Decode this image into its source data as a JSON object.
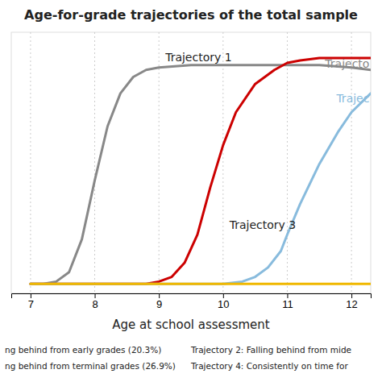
{
  "chart_data": {
    "type": "line",
    "title": "Age-for-grade trajectories of the total sample",
    "x_label": "Age at school assessment",
    "xlim": [
      6.7,
      12.3
    ],
    "ylim": [
      -0.03,
      1.08
    ],
    "xticks": [
      7,
      8,
      9,
      10,
      11,
      12
    ],
    "yticks": [],
    "tick_labels": "x",
    "grid": true,
    "series": [
      {
        "color": "#888888",
        "x": [
          7.0,
          7.2,
          7.4,
          7.6,
          7.8,
          8.0,
          8.2,
          8.4,
          8.6,
          8.8,
          9.0,
          9.5,
          10.0,
          10.5,
          11.0,
          11.5,
          12.0,
          12.3
        ],
        "values": [
          0.01,
          0.01,
          0.02,
          0.06,
          0.2,
          0.45,
          0.68,
          0.82,
          0.89,
          0.92,
          0.93,
          0.94,
          0.94,
          0.94,
          0.94,
          0.94,
          0.93,
          0.92
        ]
      },
      {
        "color": "#cc0000",
        "x": [
          7.0,
          7.5,
          8.0,
          8.5,
          8.8,
          9.0,
          9.2,
          9.4,
          9.6,
          9.8,
          10.0,
          10.2,
          10.5,
          10.8,
          11.0,
          11.2,
          11.5,
          12.0,
          12.3
        ],
        "values": [
          0.01,
          0.01,
          0.01,
          0.01,
          0.01,
          0.02,
          0.04,
          0.1,
          0.22,
          0.42,
          0.6,
          0.74,
          0.86,
          0.92,
          0.95,
          0.96,
          0.97,
          0.97,
          0.97
        ]
      },
      {
        "color": "#88bbdd",
        "x": [
          7.0,
          7.5,
          8.0,
          8.5,
          9.0,
          9.5,
          10.0,
          10.3,
          10.5,
          10.7,
          10.9,
          11.0,
          11.2,
          11.5,
          11.8,
          12.0,
          12.3
        ],
        "values": [
          0.01,
          0.01,
          0.01,
          0.01,
          0.01,
          0.01,
          0.01,
          0.02,
          0.04,
          0.08,
          0.15,
          0.22,
          0.35,
          0.52,
          0.66,
          0.74,
          0.82
        ]
      },
      {
        "color": "#f0b800",
        "x": [
          7.0,
          12.3
        ],
        "values": [
          0.01,
          0.01
        ]
      }
    ],
    "annotations": [
      {
        "text": "Trajectory 1",
        "x": 9.1,
        "y": 0.975
      },
      {
        "text": "Trajectory 3",
        "x": 10.1,
        "y": 0.26
      },
      {
        "text": "Trajecto",
        "x": 12.28,
        "y": 0.945,
        "color": "#888888"
      },
      {
        "text": "Trajec",
        "x": 12.28,
        "y": 0.8,
        "color": "#88bbdd"
      }
    ],
    "notes": [
      "ng behind from early grades (20.3%)",
      "ng behind from terminal grades (26.9%)",
      "Trajectory 2: Falling behind from mide",
      "Trajectory 4: Consistently on time for"
    ]
  }
}
